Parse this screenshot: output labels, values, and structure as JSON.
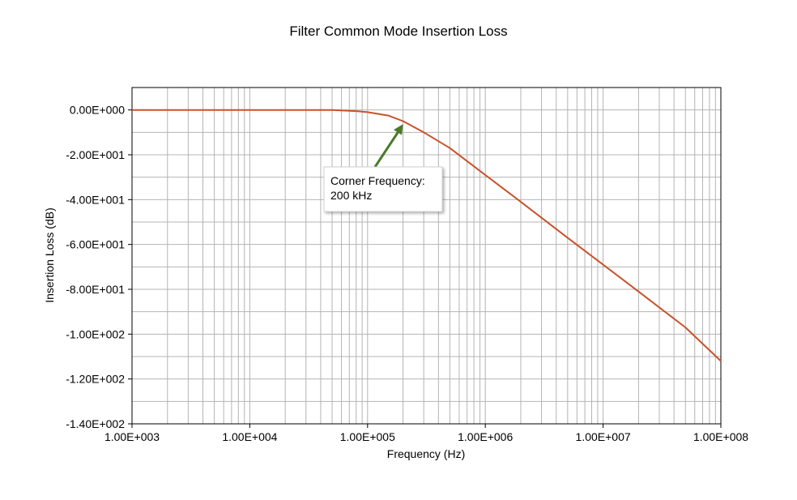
{
  "chart_data": {
    "type": "line",
    "title": "Filter Common Mode Insertion Loss",
    "xlabel": "Frequency (Hz)",
    "ylabel": "Insertion Loss (dB)",
    "x_scale": "log",
    "xlim": [
      1000,
      100000000
    ],
    "ylim": [
      -140,
      10
    ],
    "x_tick_values": [
      1000,
      10000,
      100000,
      1000000,
      10000000,
      100000000
    ],
    "x_tick_labels": [
      "1.00E+003",
      "1.00E+004",
      "1.00E+005",
      "1.00E+006",
      "1.00E+007",
      "1.00E+008"
    ],
    "y_tick_values": [
      0,
      -20,
      -40,
      -60,
      -80,
      -100,
      -120,
      -140
    ],
    "y_tick_labels": [
      "0.00E+000",
      "-2.00E+001",
      "-4.00E+001",
      "-6.00E+001",
      "-8.00E+001",
      "-1.00E+002",
      "-1.20E+002",
      "-1.40E+002"
    ],
    "grid": true,
    "series": [
      {
        "color": "#c8522a",
        "x": [
          1000,
          10000,
          50000,
          80000,
          100000,
          150000,
          200000,
          300000,
          500000,
          1000000,
          2000000,
          5000000,
          10000000,
          20000000,
          50000000,
          100000000
        ],
        "y": [
          0,
          0,
          0,
          -0.5,
          -1,
          -2.5,
          -5,
          -10,
          -17,
          -29,
          -41,
          -57,
          -69,
          -81,
          -97,
          -112
        ]
      }
    ],
    "annotations": [
      {
        "text_lines": [
          "Corner Frequency:",
          "200 kHz"
        ],
        "target_x": 200000,
        "target_y": -6,
        "arrow_color": "#4a7a2a"
      }
    ]
  }
}
